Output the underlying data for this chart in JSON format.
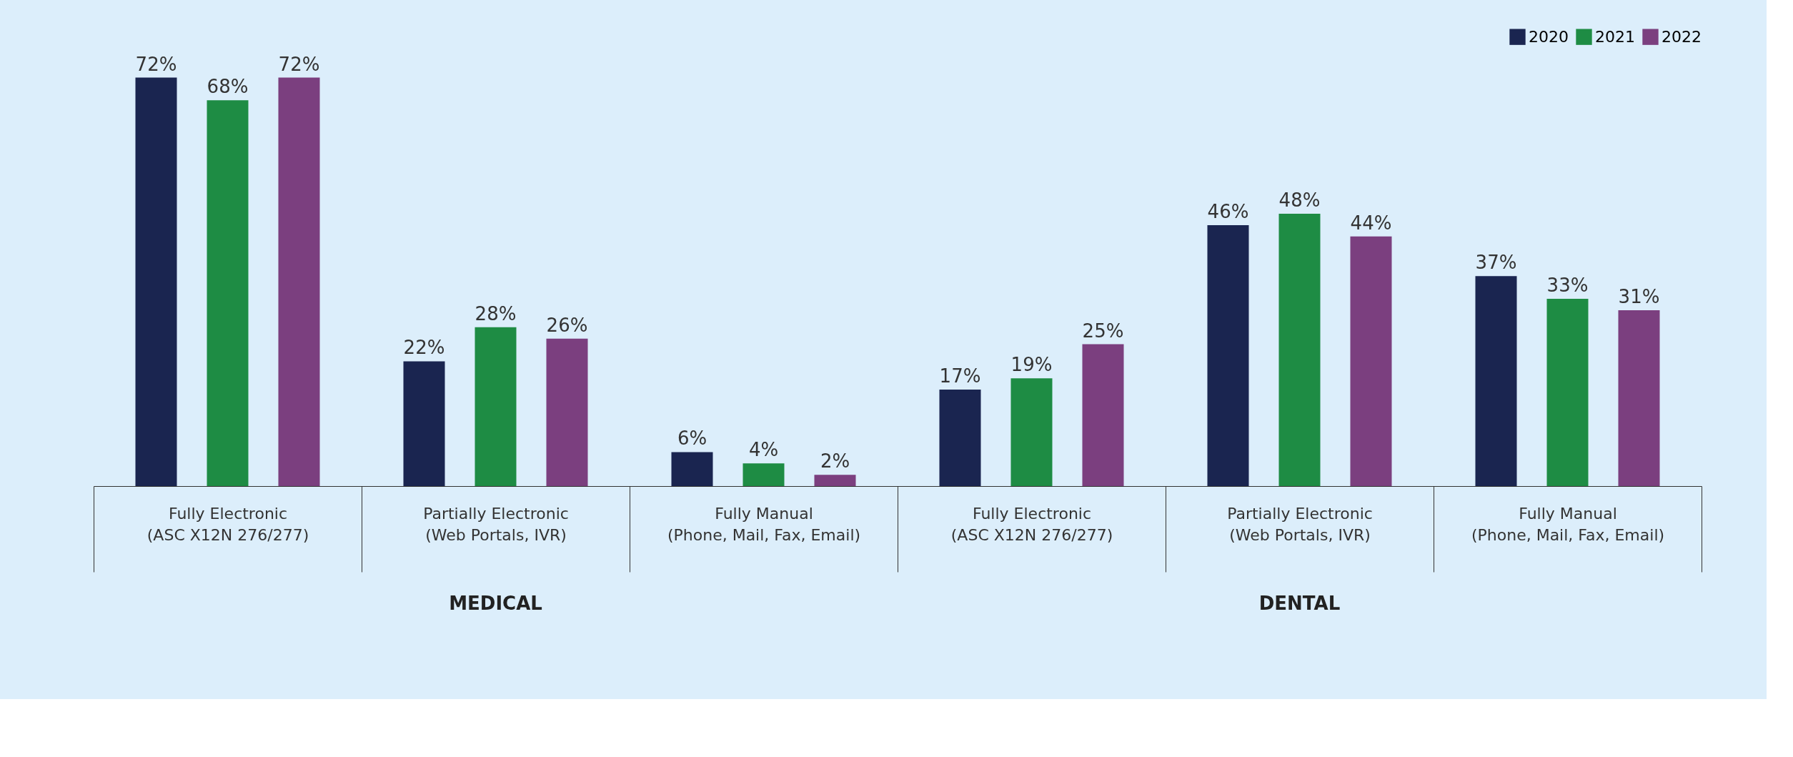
{
  "chart_data": {
    "type": "bar",
    "categories": [
      "Fully Electronic\n(ASC X12N 276/277)",
      "Partially Electronic\n(Web Portals, IVR)",
      "Fully Manual\n(Phone, Mail, Fax, Email)",
      "Fully Electronic\n(ASC X12N 276/277)",
      "Partially Electronic\n(Web Portals, IVR)",
      "Fully Manual\n(Phone, Mail, Fax, Email)"
    ],
    "series": [
      {
        "name": "2020",
        "color": "#1a2550",
        "values": [
          72,
          22,
          6,
          17,
          46,
          37
        ],
        "value_labels": [
          "72%",
          "22%",
          "6%",
          "17%",
          "46%",
          "37%"
        ]
      },
      {
        "name": "2021",
        "color": "#1e8c44",
        "values": [
          68,
          28,
          4,
          19,
          48,
          33
        ],
        "value_labels": [
          "68%",
          "28%",
          "4%",
          "19%",
          "48%",
          "33%"
        ]
      },
      {
        "name": "2022",
        "color": "#7b3f7f",
        "values": [
          72,
          26,
          2,
          25,
          44,
          31
        ],
        "value_labels": [
          "72%",
          "26%",
          "2%",
          "25%",
          "44%",
          "31%"
        ]
      }
    ],
    "annotations": [
      "MEDICAL",
      "DENTAL"
    ],
    "legend": "top right",
    "grid": false
  }
}
